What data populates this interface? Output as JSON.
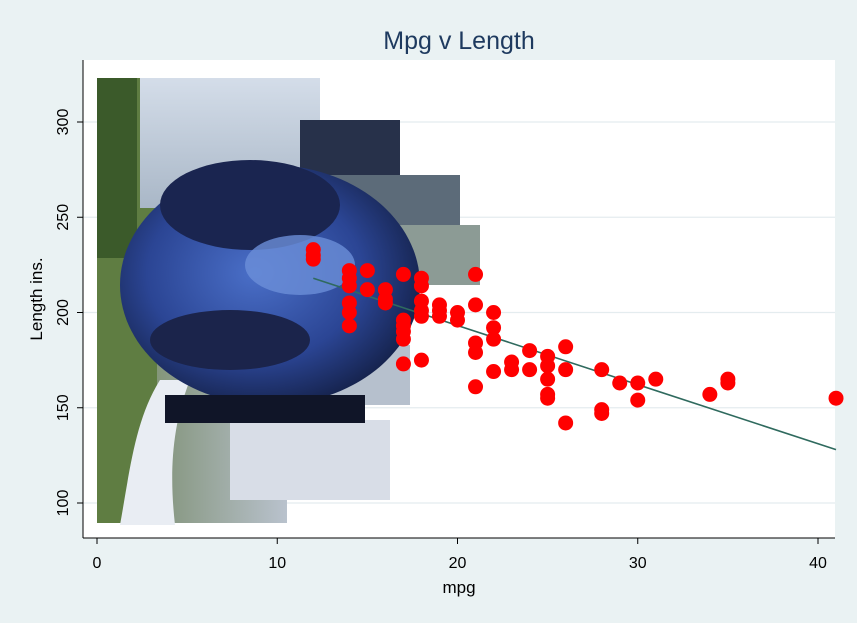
{
  "chart_data": {
    "type": "scatter",
    "title": "Mpg v Length",
    "xlabel": "mpg",
    "ylabel": "Length ins.",
    "xlim": [
      0,
      41.5
    ],
    "ylim": [
      86,
      327
    ],
    "x_ticks": [
      0,
      10,
      20,
      30,
      40
    ],
    "y_ticks": [
      100,
      150,
      200,
      250,
      300
    ],
    "grid": true,
    "background_image": "photo of a blue car on a winding road",
    "colors": {
      "page_bg": "#eaf2f3",
      "plot_bg": "#ffffff",
      "points": "#ff0000",
      "fit_line": "#2f6a5e",
      "title": "#1e3a5f"
    },
    "series": [
      {
        "kind": "points",
        "points": [
          [
            12,
            230
          ],
          [
            12,
            233
          ],
          [
            12,
            228
          ],
          [
            14,
            222
          ],
          [
            14,
            218
          ],
          [
            14,
            214
          ],
          [
            14,
            205
          ],
          [
            14,
            200
          ],
          [
            14,
            193
          ],
          [
            15,
            222
          ],
          [
            15,
            212
          ],
          [
            16,
            212
          ],
          [
            16,
            207
          ],
          [
            16,
            205
          ],
          [
            17,
            220
          ],
          [
            17,
            196
          ],
          [
            17,
            193
          ],
          [
            17,
            190
          ],
          [
            17,
            186
          ],
          [
            17,
            173
          ],
          [
            18,
            218
          ],
          [
            18,
            214
          ],
          [
            18,
            206
          ],
          [
            18,
            201
          ],
          [
            18,
            198
          ],
          [
            18,
            175
          ],
          [
            19,
            204
          ],
          [
            19,
            201
          ],
          [
            19,
            198
          ],
          [
            20,
            200
          ],
          [
            20,
            196
          ],
          [
            21,
            220
          ],
          [
            21,
            204
          ],
          [
            21,
            184
          ],
          [
            21,
            179
          ],
          [
            21,
            161
          ],
          [
            22,
            200
          ],
          [
            22,
            192
          ],
          [
            22,
            186
          ],
          [
            22,
            169
          ],
          [
            23,
            174
          ],
          [
            23,
            170
          ],
          [
            24,
            180
          ],
          [
            24,
            170
          ],
          [
            25,
            177
          ],
          [
            25,
            172
          ],
          [
            25,
            165
          ],
          [
            25,
            157
          ],
          [
            25,
            155
          ],
          [
            26,
            182
          ],
          [
            26,
            170
          ],
          [
            26,
            142
          ],
          [
            28,
            170
          ],
          [
            28,
            149
          ],
          [
            28,
            147
          ],
          [
            29,
            163
          ],
          [
            30,
            163
          ],
          [
            30,
            154
          ],
          [
            31,
            165
          ],
          [
            34,
            157
          ],
          [
            35,
            165
          ],
          [
            35,
            163
          ],
          [
            41,
            155
          ]
        ]
      },
      {
        "kind": "fit-line",
        "points": [
          [
            12,
            218
          ],
          [
            41,
            128
          ]
        ]
      }
    ]
  }
}
